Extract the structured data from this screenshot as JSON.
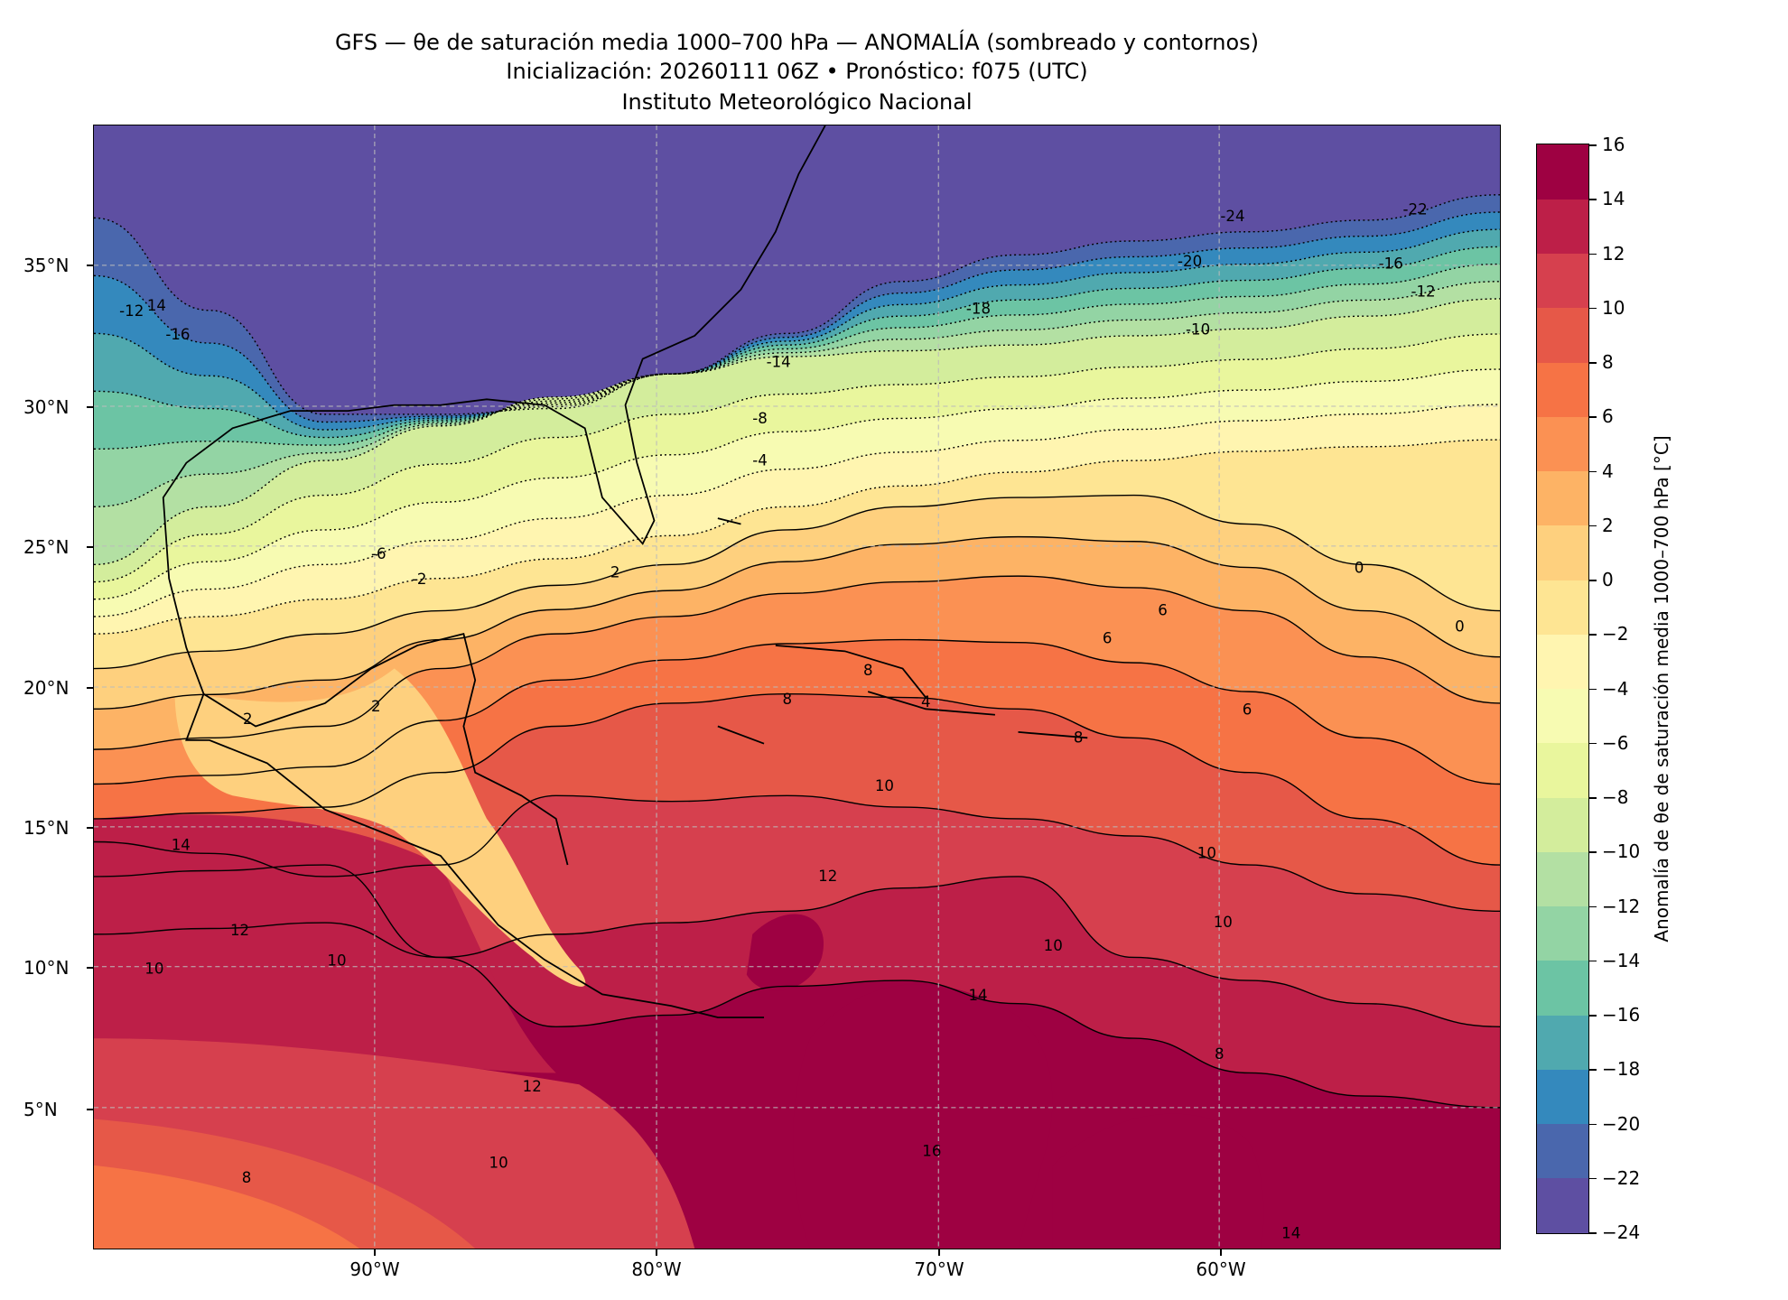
{
  "title": {
    "line1": "GFS — θe de saturación media 1000–700 hPa — ANOMALÍA (sombreado y contornos)",
    "line2": "Inicialización: 20260111 06Z   •   Pronóstico: f075 (UTC)",
    "line3": "Instituto Meteorológico Nacional"
  },
  "axes": {
    "x_ticks": [
      "90°W",
      "80°W",
      "70°W",
      "60°W"
    ],
    "y_ticks": [
      "35°N",
      "30°N",
      "25°N",
      "20°N",
      "15°N",
      "10°N",
      "5°N"
    ]
  },
  "colorbar": {
    "label": "Anomalía de θe de saturación media 1000–700 hPa [°C]",
    "ticks": [
      "16",
      "14",
      "12",
      "10",
      "8",
      "6",
      "4",
      "2",
      "0",
      "−2",
      "−4",
      "−6",
      "−8",
      "−10",
      "−12",
      "−14",
      "−16",
      "−18",
      "−20",
      "−22",
      "−24"
    ],
    "levels": [
      -24,
      -22,
      -20,
      -18,
      -16,
      -14,
      -12,
      -10,
      -8,
      -6,
      -4,
      -2,
      0,
      2,
      4,
      6,
      8,
      10,
      12,
      14,
      16
    ],
    "colors": [
      "#5e4fa2",
      "#4a67ad",
      "#3489bd",
      "#50a9af",
      "#6cc4a4",
      "#93d4a4",
      "#b3e0a3",
      "#d3ed9c",
      "#e9f69d",
      "#f7fbb2",
      "#fff5b0",
      "#fee593",
      "#fed07e",
      "#fdb365",
      "#fb9153",
      "#f67345",
      "#e65848",
      "#d6404e",
      "#bd1f48",
      "#9e0142"
    ]
  },
  "contour_labels": [
    "-24",
    "-22",
    "-20",
    "-16",
    "-18",
    "-12",
    "-10",
    "-14",
    "-8",
    "-4",
    "-6",
    "-2",
    "2",
    "0",
    "0",
    "6",
    "6",
    "8",
    "8",
    "4",
    "6",
    "8",
    "10",
    "12",
    "10",
    "10",
    "14",
    "12",
    "10",
    "10",
    "12",
    "10",
    "8",
    "14",
    "10",
    "16",
    "14",
    "8",
    "2",
    "2",
    "-12",
    "14",
    "-16"
  ]
}
